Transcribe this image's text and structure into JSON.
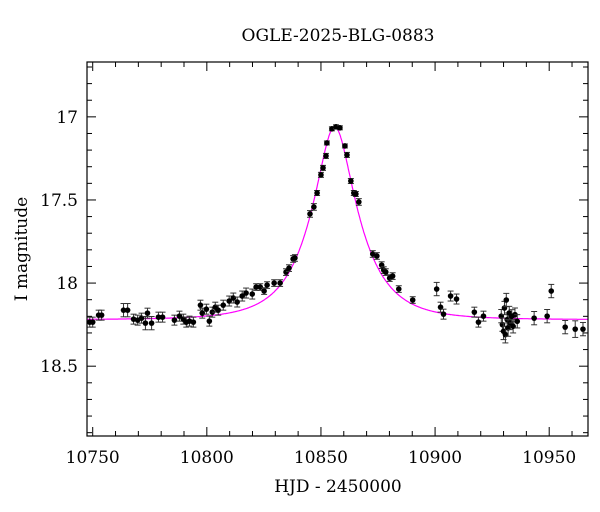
{
  "chart_data": {
    "type": "scatter",
    "title": "OGLE-2025-BLG-0883",
    "xlabel": "HJD - 2450000",
    "ylabel": "I magnitude",
    "xlim": [
      10747.5,
      10967
    ],
    "ylim": [
      18.92,
      16.67
    ],
    "y_inverted": true,
    "grid": false,
    "xticks": [
      10750,
      10800,
      10850,
      10900,
      10950
    ],
    "xtick_labels": [
      "10750",
      "10800",
      "10850",
      "10900",
      "10950"
    ],
    "yticks": [
      17,
      17.5,
      18,
      18.5
    ],
    "ytick_labels": [
      "17",
      "17.5",
      "18",
      "18.5"
    ],
    "point_color": "#000000",
    "model_color": "#ff00ff",
    "series": [
      {
        "kind": "data-with-errorbars",
        "x": [
          10748.7,
          10750.0,
          10752.6,
          10753.9,
          10763.5,
          10765.3,
          10767.9,
          10769.7,
          10771.4,
          10773.1,
          10774.0,
          10775.8,
          10778.8,
          10780.6,
          10785.8,
          10788.0,
          10789.7,
          10791.0,
          10792.4,
          10794.1,
          10797.2,
          10798.0,
          10799.8,
          10801.1,
          10802.4,
          10803.7,
          10805.0,
          10807.2,
          10809.8,
          10811.6,
          10813.3,
          10815.5,
          10817.2,
          10819.9,
          10821.6,
          10823.4,
          10825.1,
          10826.4,
          10829.5,
          10832.1,
          10834.7,
          10836.0,
          10837.8,
          10838.6,
          10845.2,
          10846.9,
          10848.3,
          10850.0,
          10850.9,
          10852.2,
          10852.6,
          10854.8,
          10856.6,
          10858.3,
          10860.5,
          10861.4,
          10863.1,
          10864.4,
          10865.3,
          10866.6,
          10872.7,
          10874.5,
          10876.6,
          10877.5,
          10878.4,
          10880.1,
          10881.4,
          10884.1,
          10890.2,
          10900.7,
          10902.4,
          10903.7,
          10906.8,
          10909.4,
          10917.2,
          10919.0,
          10921.2,
          10929.0,
          10929.5,
          10930.0,
          10930.4,
          10930.8,
          10931.2,
          10931.6,
          10932.0,
          10932.5,
          10933.0,
          10933.6,
          10934.2,
          10935.0,
          10936.0,
          10943.4,
          10949.1,
          10950.9,
          10957.0,
          10961.4,
          10964.8
        ],
        "y": [
          18.235,
          18.235,
          18.193,
          18.193,
          18.163,
          18.163,
          18.217,
          18.223,
          18.211,
          18.241,
          18.181,
          18.241,
          18.205,
          18.205,
          18.223,
          18.199,
          18.217,
          18.235,
          18.229,
          18.235,
          18.133,
          18.181,
          18.157,
          18.229,
          18.175,
          18.145,
          18.163,
          18.133,
          18.108,
          18.09,
          18.114,
          18.078,
          18.06,
          18.066,
          18.024,
          18.024,
          18.048,
          18.012,
          18.0,
          18.0,
          17.934,
          17.91,
          17.855,
          17.849,
          17.584,
          17.542,
          17.458,
          17.349,
          17.307,
          17.235,
          17.157,
          17.072,
          17.06,
          17.066,
          17.175,
          17.229,
          17.386,
          17.458,
          17.464,
          17.512,
          17.825,
          17.837,
          17.892,
          17.922,
          17.934,
          17.97,
          17.958,
          18.036,
          18.102,
          18.036,
          18.145,
          18.187,
          18.078,
          18.096,
          18.175,
          18.235,
          18.199,
          18.199,
          18.25,
          18.29,
          18.15,
          18.31,
          18.102,
          18.22,
          18.27,
          18.18,
          18.24,
          18.2,
          18.26,
          18.19,
          18.23,
          18.211,
          18.199,
          18.048,
          18.265,
          18.277,
          18.277
        ],
        "yerr": [
          0.03,
          0.03,
          0.03,
          0.03,
          0.04,
          0.04,
          0.03,
          0.03,
          0.03,
          0.04,
          0.03,
          0.04,
          0.03,
          0.03,
          0.03,
          0.03,
          0.03,
          0.03,
          0.03,
          0.03,
          0.03,
          0.03,
          0.03,
          0.03,
          0.03,
          0.03,
          0.03,
          0.03,
          0.03,
          0.03,
          0.03,
          0.03,
          0.03,
          0.03,
          0.02,
          0.02,
          0.02,
          0.02,
          0.02,
          0.02,
          0.02,
          0.02,
          0.02,
          0.02,
          0.02,
          0.02,
          0.015,
          0.015,
          0.015,
          0.015,
          0.012,
          0.012,
          0.012,
          0.012,
          0.012,
          0.015,
          0.015,
          0.015,
          0.015,
          0.02,
          0.02,
          0.02,
          0.02,
          0.02,
          0.02,
          0.02,
          0.02,
          0.02,
          0.02,
          0.04,
          0.03,
          0.03,
          0.03,
          0.03,
          0.03,
          0.03,
          0.03,
          0.04,
          0.04,
          0.05,
          0.04,
          0.05,
          0.04,
          0.04,
          0.05,
          0.04,
          0.04,
          0.04,
          0.04,
          0.04,
          0.04,
          0.04,
          0.04,
          0.04,
          0.04,
          0.05,
          0.04
        ]
      },
      {
        "kind": "model-curve",
        "model": "point-source point-lens",
        "t0": 10856,
        "u0": 0.36,
        "tE": 20,
        "baseline": 18.22
      }
    ]
  }
}
